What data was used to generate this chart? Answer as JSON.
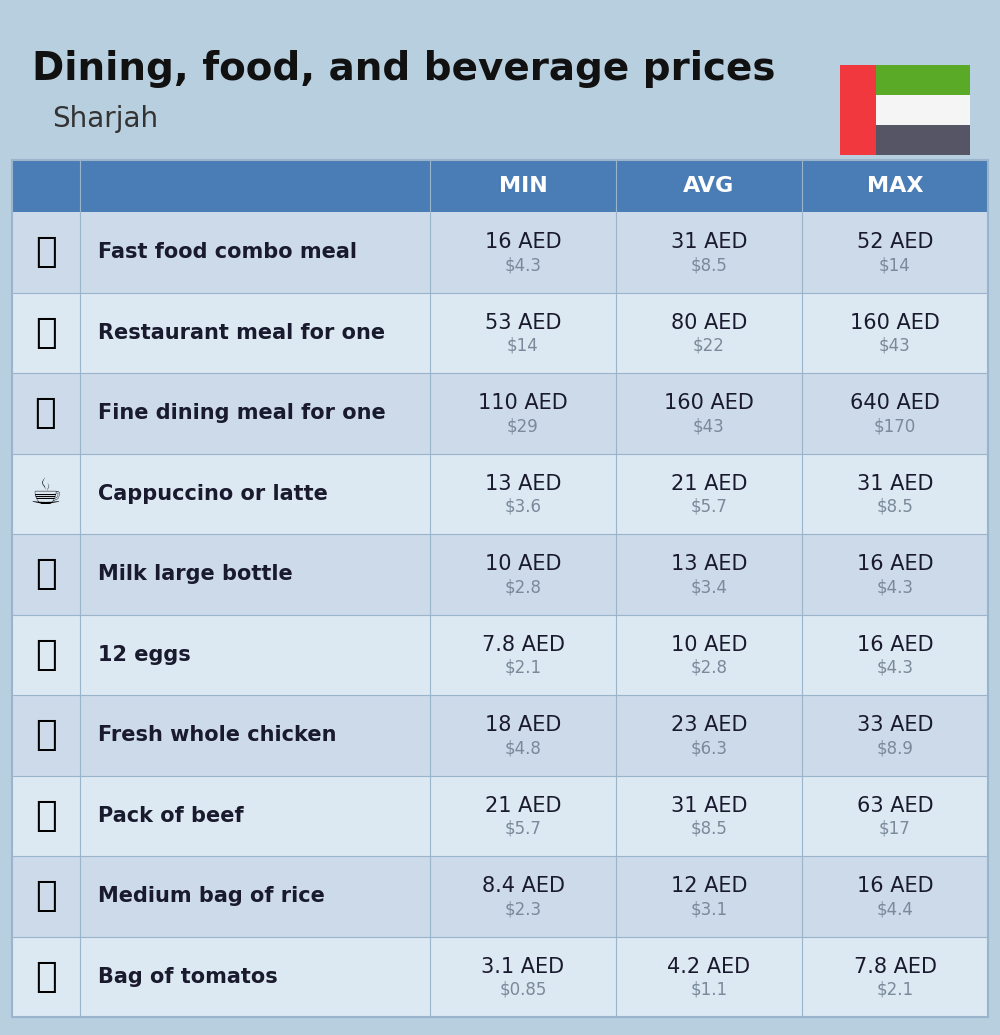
{
  "title": "Dining, food, and beverage prices",
  "subtitle": "Sharjah",
  "bg_color": "#b8cfe0",
  "header_bg": "#4a7db5",
  "header_text_color": "#ffffff",
  "row_bg_light": "#ccdaea",
  "row_bg_lighter": "#dce8f2",
  "icon_col_bg_even": "#b8cfe0",
  "icon_col_bg_odd": "#c8d9e8",
  "columns": [
    "MIN",
    "AVG",
    "MAX"
  ],
  "rows": [
    {
      "label": "Fast food combo meal",
      "emoji": "🍔",
      "min_aed": "16 AED",
      "min_usd": "$4.3",
      "avg_aed": "31 AED",
      "avg_usd": "$8.5",
      "max_aed": "52 AED",
      "max_usd": "$14"
    },
    {
      "label": "Restaurant meal for one",
      "emoji": "🍳",
      "min_aed": "53 AED",
      "min_usd": "$14",
      "avg_aed": "80 AED",
      "avg_usd": "$22",
      "max_aed": "160 AED",
      "max_usd": "$43"
    },
    {
      "label": "Fine dining meal for one",
      "emoji": "🍽️",
      "min_aed": "110 AED",
      "min_usd": "$29",
      "avg_aed": "160 AED",
      "avg_usd": "$43",
      "max_aed": "640 AED",
      "max_usd": "$170"
    },
    {
      "label": "Cappuccino or latte",
      "emoji": "☕",
      "min_aed": "13 AED",
      "min_usd": "$3.6",
      "avg_aed": "21 AED",
      "avg_usd": "$5.7",
      "max_aed": "31 AED",
      "max_usd": "$8.5"
    },
    {
      "label": "Milk large bottle",
      "emoji": "🥛",
      "min_aed": "10 AED",
      "min_usd": "$2.8",
      "avg_aed": "13 AED",
      "avg_usd": "$3.4",
      "max_aed": "16 AED",
      "max_usd": "$4.3"
    },
    {
      "label": "12 eggs",
      "emoji": "🥚",
      "min_aed": "7.8 AED",
      "min_usd": "$2.1",
      "avg_aed": "10 AED",
      "avg_usd": "$2.8",
      "max_aed": "16 AED",
      "max_usd": "$4.3"
    },
    {
      "label": "Fresh whole chicken",
      "emoji": "🍗",
      "min_aed": "18 AED",
      "min_usd": "$4.8",
      "avg_aed": "23 AED",
      "avg_usd": "$6.3",
      "max_aed": "33 AED",
      "max_usd": "$8.9"
    },
    {
      "label": "Pack of beef",
      "emoji": "🥩",
      "min_aed": "21 AED",
      "min_usd": "$5.7",
      "avg_aed": "31 AED",
      "avg_usd": "$8.5",
      "max_aed": "63 AED",
      "max_usd": "$17"
    },
    {
      "label": "Medium bag of rice",
      "emoji": "🍚",
      "min_aed": "8.4 AED",
      "min_usd": "$2.3",
      "avg_aed": "12 AED",
      "avg_usd": "$3.1",
      "max_aed": "16 AED",
      "max_usd": "$4.4"
    },
    {
      "label": "Bag of tomatos",
      "emoji": "🍅",
      "min_aed": "3.1 AED",
      "min_usd": "$0.85",
      "avg_aed": "4.2 AED",
      "avg_usd": "$1.1",
      "max_aed": "7.8 AED",
      "max_usd": "$2.1"
    }
  ],
  "aed_color": "#1a1a2e",
  "usd_color": "#7a8a9a",
  "label_color": "#1a1a2e",
  "divider_color": "#9ab4cc",
  "flag_red": "#f0383e",
  "flag_green": "#5aaa28",
  "flag_white": "#f5f5f5",
  "flag_black": "#555565"
}
